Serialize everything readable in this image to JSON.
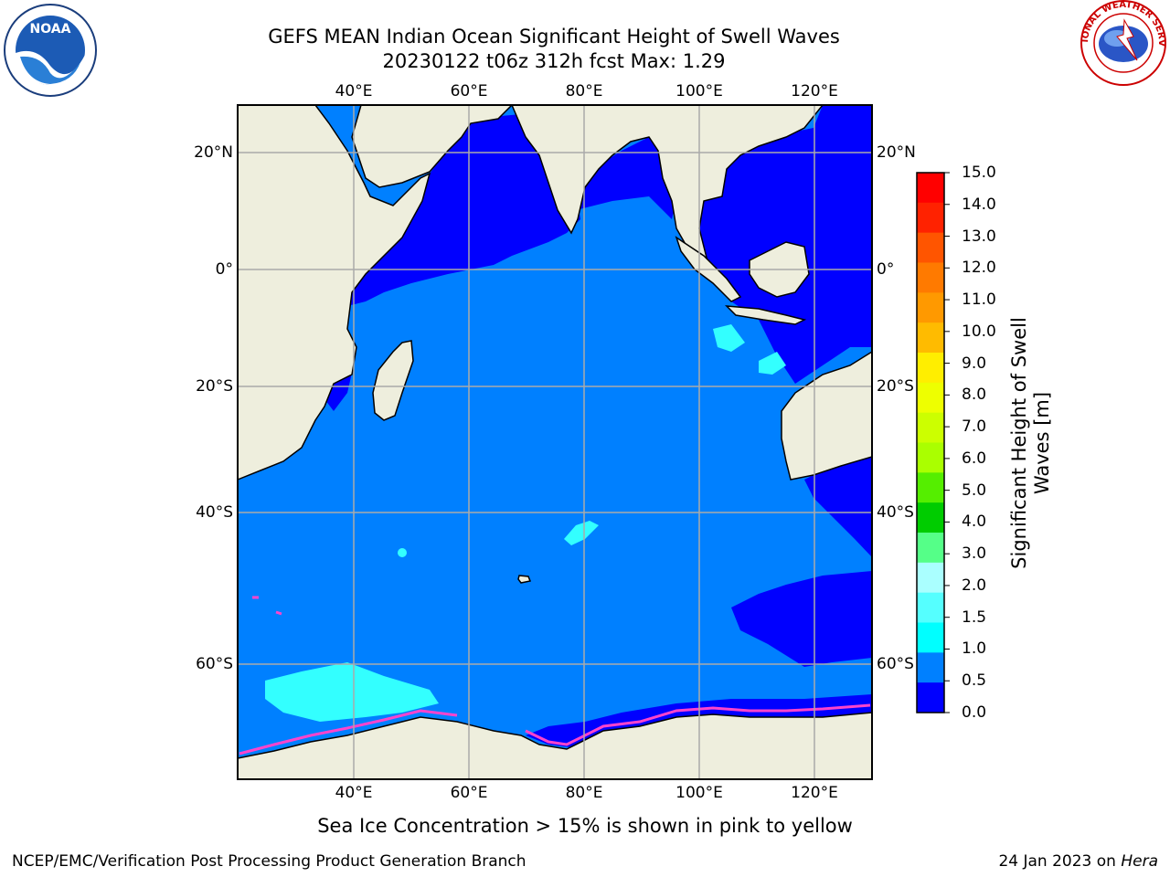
{
  "title": {
    "line1": "GEFS MEAN Indian Ocean Significant Height of Swell Waves",
    "line2": "20230122 t06z 312h fcst   Max: 1.29"
  },
  "map": {
    "lon_labels": [
      "40°E",
      "60°E",
      "80°E",
      "100°E",
      "120°E"
    ],
    "lat_labels": [
      "20°N",
      "0°",
      "20°S",
      "40°S",
      "60°S"
    ],
    "extent": {
      "lon": [
        20,
        130
      ],
      "lat": [
        -70,
        30
      ]
    }
  },
  "colorbar": {
    "label_line1": "Significant Height of Swell",
    "label_line2": "Waves [m]",
    "ticks": [
      "15.0",
      "14.0",
      "13.0",
      "12.0",
      "11.0",
      "10.0",
      "9.0",
      "8.0",
      "7.0",
      "6.0",
      "5.0",
      "4.0",
      "3.0",
      "2.0",
      "1.5",
      "1.0",
      "0.5",
      "0.0"
    ],
    "colors_top_to_bottom": [
      "#ff0000",
      "#ff2200",
      "#ff5500",
      "#ff7a00",
      "#ff9900",
      "#ffbb00",
      "#ffee00",
      "#eeff00",
      "#ccff00",
      "#aaff00",
      "#55ee00",
      "#00cc00",
      "#55ff88",
      "#aaffff",
      "#55ffff",
      "#00ffff",
      "#0080ff",
      "#0000ff"
    ]
  },
  "colors": {
    "land": "#eeeedd",
    "deep_swell": "#0000ff",
    "mid_swell": "#0080ff",
    "light_swell": "#33ffff",
    "sea_ice": "#ff44cc",
    "grid": "#aaaaaa"
  },
  "logos": {
    "noaa": "NOAA",
    "nws": "NATIONAL WEATHER SERVICE"
  },
  "caption": "Sea Ice Concentration > 15% is shown in pink to yellow",
  "footer": {
    "left": "NCEP/EMC/Verification Post Processing Product Generation Branch",
    "date": "24 Jan 2023 on",
    "machine": "Hera"
  }
}
